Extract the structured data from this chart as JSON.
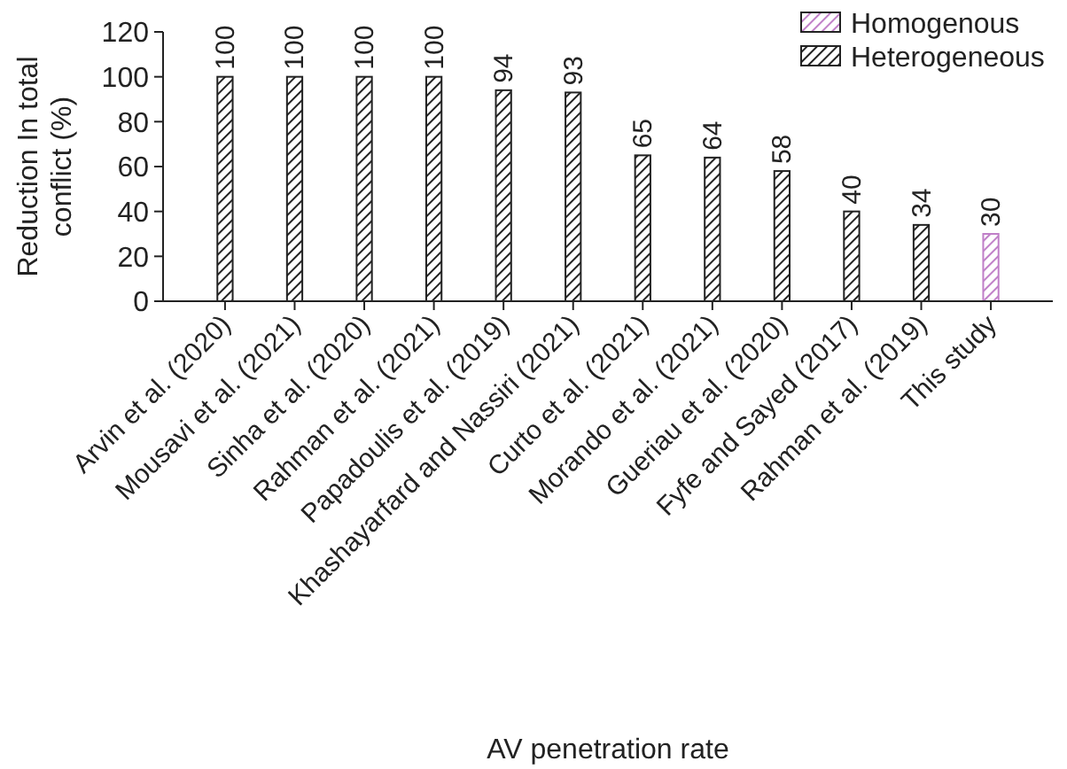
{
  "chart_data": {
    "type": "bar",
    "xlabel": "AV penetration rate",
    "ylabel": "Reduction In total\nconflict (%)",
    "categories": [
      "Arvin et al. (2020)",
      "Mousavi et al. (2021)",
      "Sinha et al. (2020)",
      "Rahman et al. (2021)",
      "Papadoulis et al. (2019)",
      "Khashayarfard and Nassiri (2021)",
      "Curto et al. (2021)",
      "Morando et al. (2021)",
      "Gueriau et al. (2020)",
      "Fyfe and Sayed (2017)",
      "Rahman et al. (2019)",
      "This study"
    ],
    "series": [
      {
        "name": "Homogenous",
        "color": "#c080c8",
        "values": [
          null,
          null,
          null,
          null,
          null,
          null,
          null,
          null,
          null,
          null,
          null,
          30
        ]
      },
      {
        "name": "Heterogeneous",
        "color": "#222222",
        "values": [
          100,
          100,
          100,
          100,
          94,
          93,
          65,
          64,
          58,
          40,
          34,
          null
        ]
      }
    ],
    "ylim": [
      0,
      120
    ],
    "yticks": [
      0,
      20,
      40,
      60,
      80,
      100,
      120
    ],
    "data_labels": true,
    "legend": "top right",
    "grid": false
  }
}
